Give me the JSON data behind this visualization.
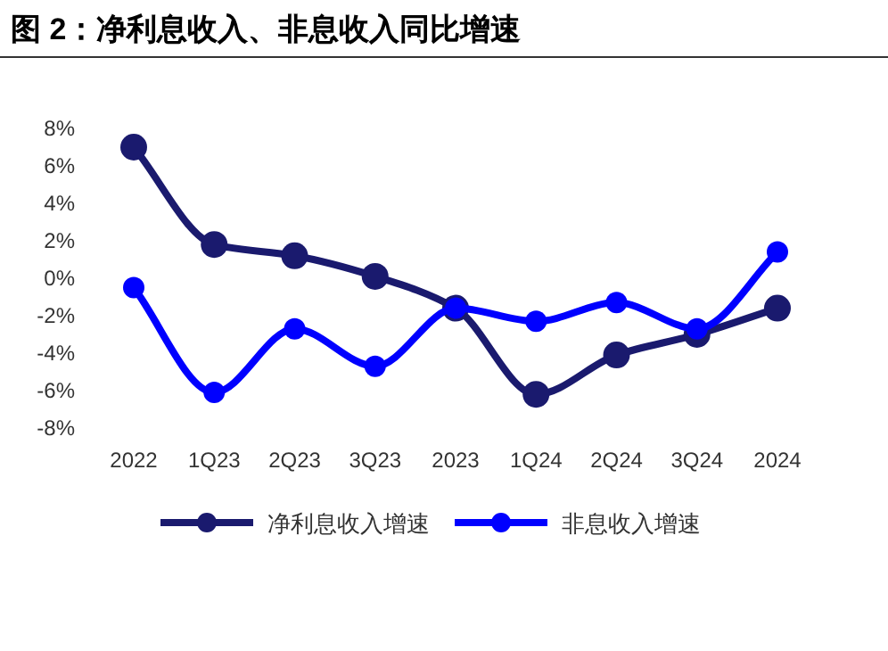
{
  "chart_data": {
    "type": "line",
    "title": "图 2：净利息收入、非息收入同比增速",
    "categories": [
      "2022",
      "1Q23",
      "2Q23",
      "3Q23",
      "2023",
      "1Q24",
      "2Q24",
      "3Q24",
      "2024"
    ],
    "series": [
      {
        "name": "净利息收入增速",
        "color": "#1a1a6e",
        "values": [
          7.0,
          1.8,
          1.2,
          0.1,
          -1.6,
          -6.2,
          -4.1,
          -3.0,
          -1.6
        ]
      },
      {
        "name": "非息收入增速",
        "color": "#0000ff",
        "values": [
          -0.5,
          -6.1,
          -2.7,
          -4.7,
          -1.6,
          -2.3,
          -1.3,
          -2.7,
          1.4
        ]
      }
    ],
    "ylim": [
      -8,
      8
    ],
    "yticks": [
      {
        "value": 8,
        "label": "8%"
      },
      {
        "value": 6,
        "label": "6%"
      },
      {
        "value": 4,
        "label": "4%"
      },
      {
        "value": 2,
        "label": "2%"
      },
      {
        "value": 0,
        "label": "0%"
      },
      {
        "value": -2,
        "label": "-2%"
      },
      {
        "value": -4,
        "label": "-4%"
      },
      {
        "value": -6,
        "label": "-6%"
      },
      {
        "value": -8,
        "label": "-8%"
      }
    ],
    "marker": "circle",
    "line_style": "solid",
    "grid": false,
    "legend": "bottom"
  }
}
